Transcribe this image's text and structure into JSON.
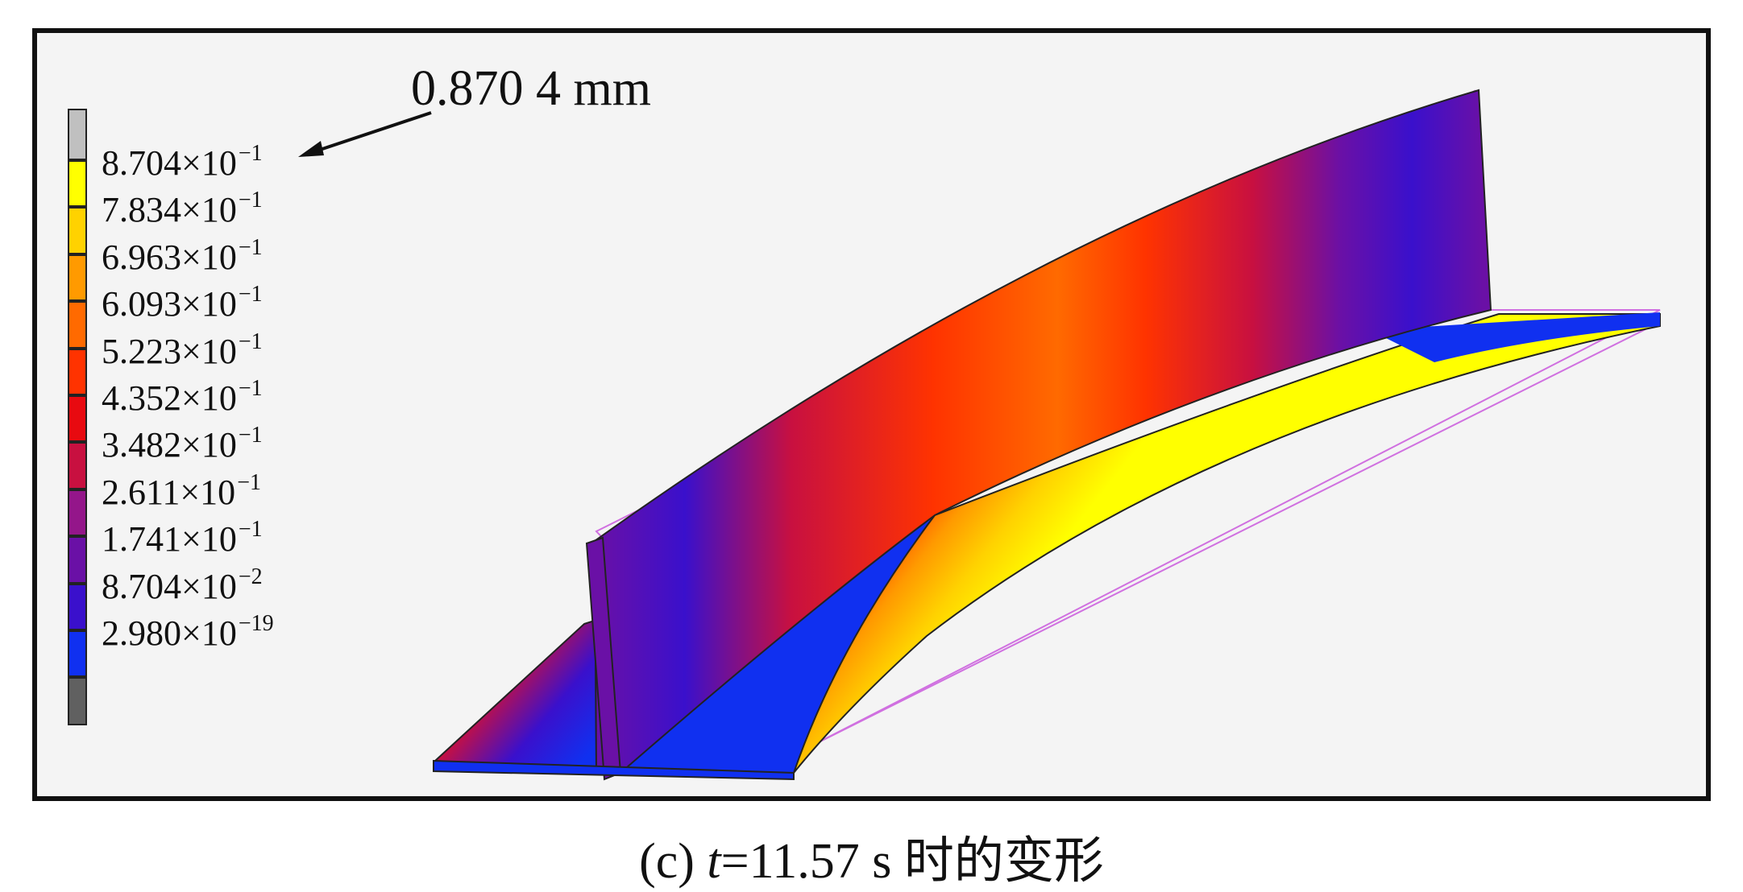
{
  "callout": {
    "label": "0.870 4 mm"
  },
  "legend": {
    "levels": [
      {
        "mantissa": "8.704",
        "exponent": "−1",
        "color": "#ffff00"
      },
      {
        "mantissa": "7.834",
        "exponent": "−1",
        "color": "#ffd200"
      },
      {
        "mantissa": "6.963",
        "exponent": "−1",
        "color": "#ff9a00"
      },
      {
        "mantissa": "6.093",
        "exponent": "−1",
        "color": "#ff6a00"
      },
      {
        "mantissa": "5.223",
        "exponent": "−1",
        "color": "#ff3300"
      },
      {
        "mantissa": "4.352",
        "exponent": "−1",
        "color": "#e80a10"
      },
      {
        "mantissa": "3.482",
        "exponent": "−1",
        "color": "#c81040"
      },
      {
        "mantissa": "2.611",
        "exponent": "−1",
        "color": "#94168a"
      },
      {
        "mantissa": "1.741",
        "exponent": "−1",
        "color": "#6a10a6"
      },
      {
        "mantissa": "8.704",
        "exponent": "−2",
        "color": "#3a10cc"
      },
      {
        "mantissa": "2.980",
        "exponent": "−19",
        "color": "#1030f0"
      }
    ],
    "top_color": "#c0c0c0",
    "bottom_color": "#606060",
    "times_sign": "×10"
  },
  "caption": {
    "prefix": "(c) ",
    "variable": "t",
    "rest": "=11.57 s 时的变形"
  }
}
